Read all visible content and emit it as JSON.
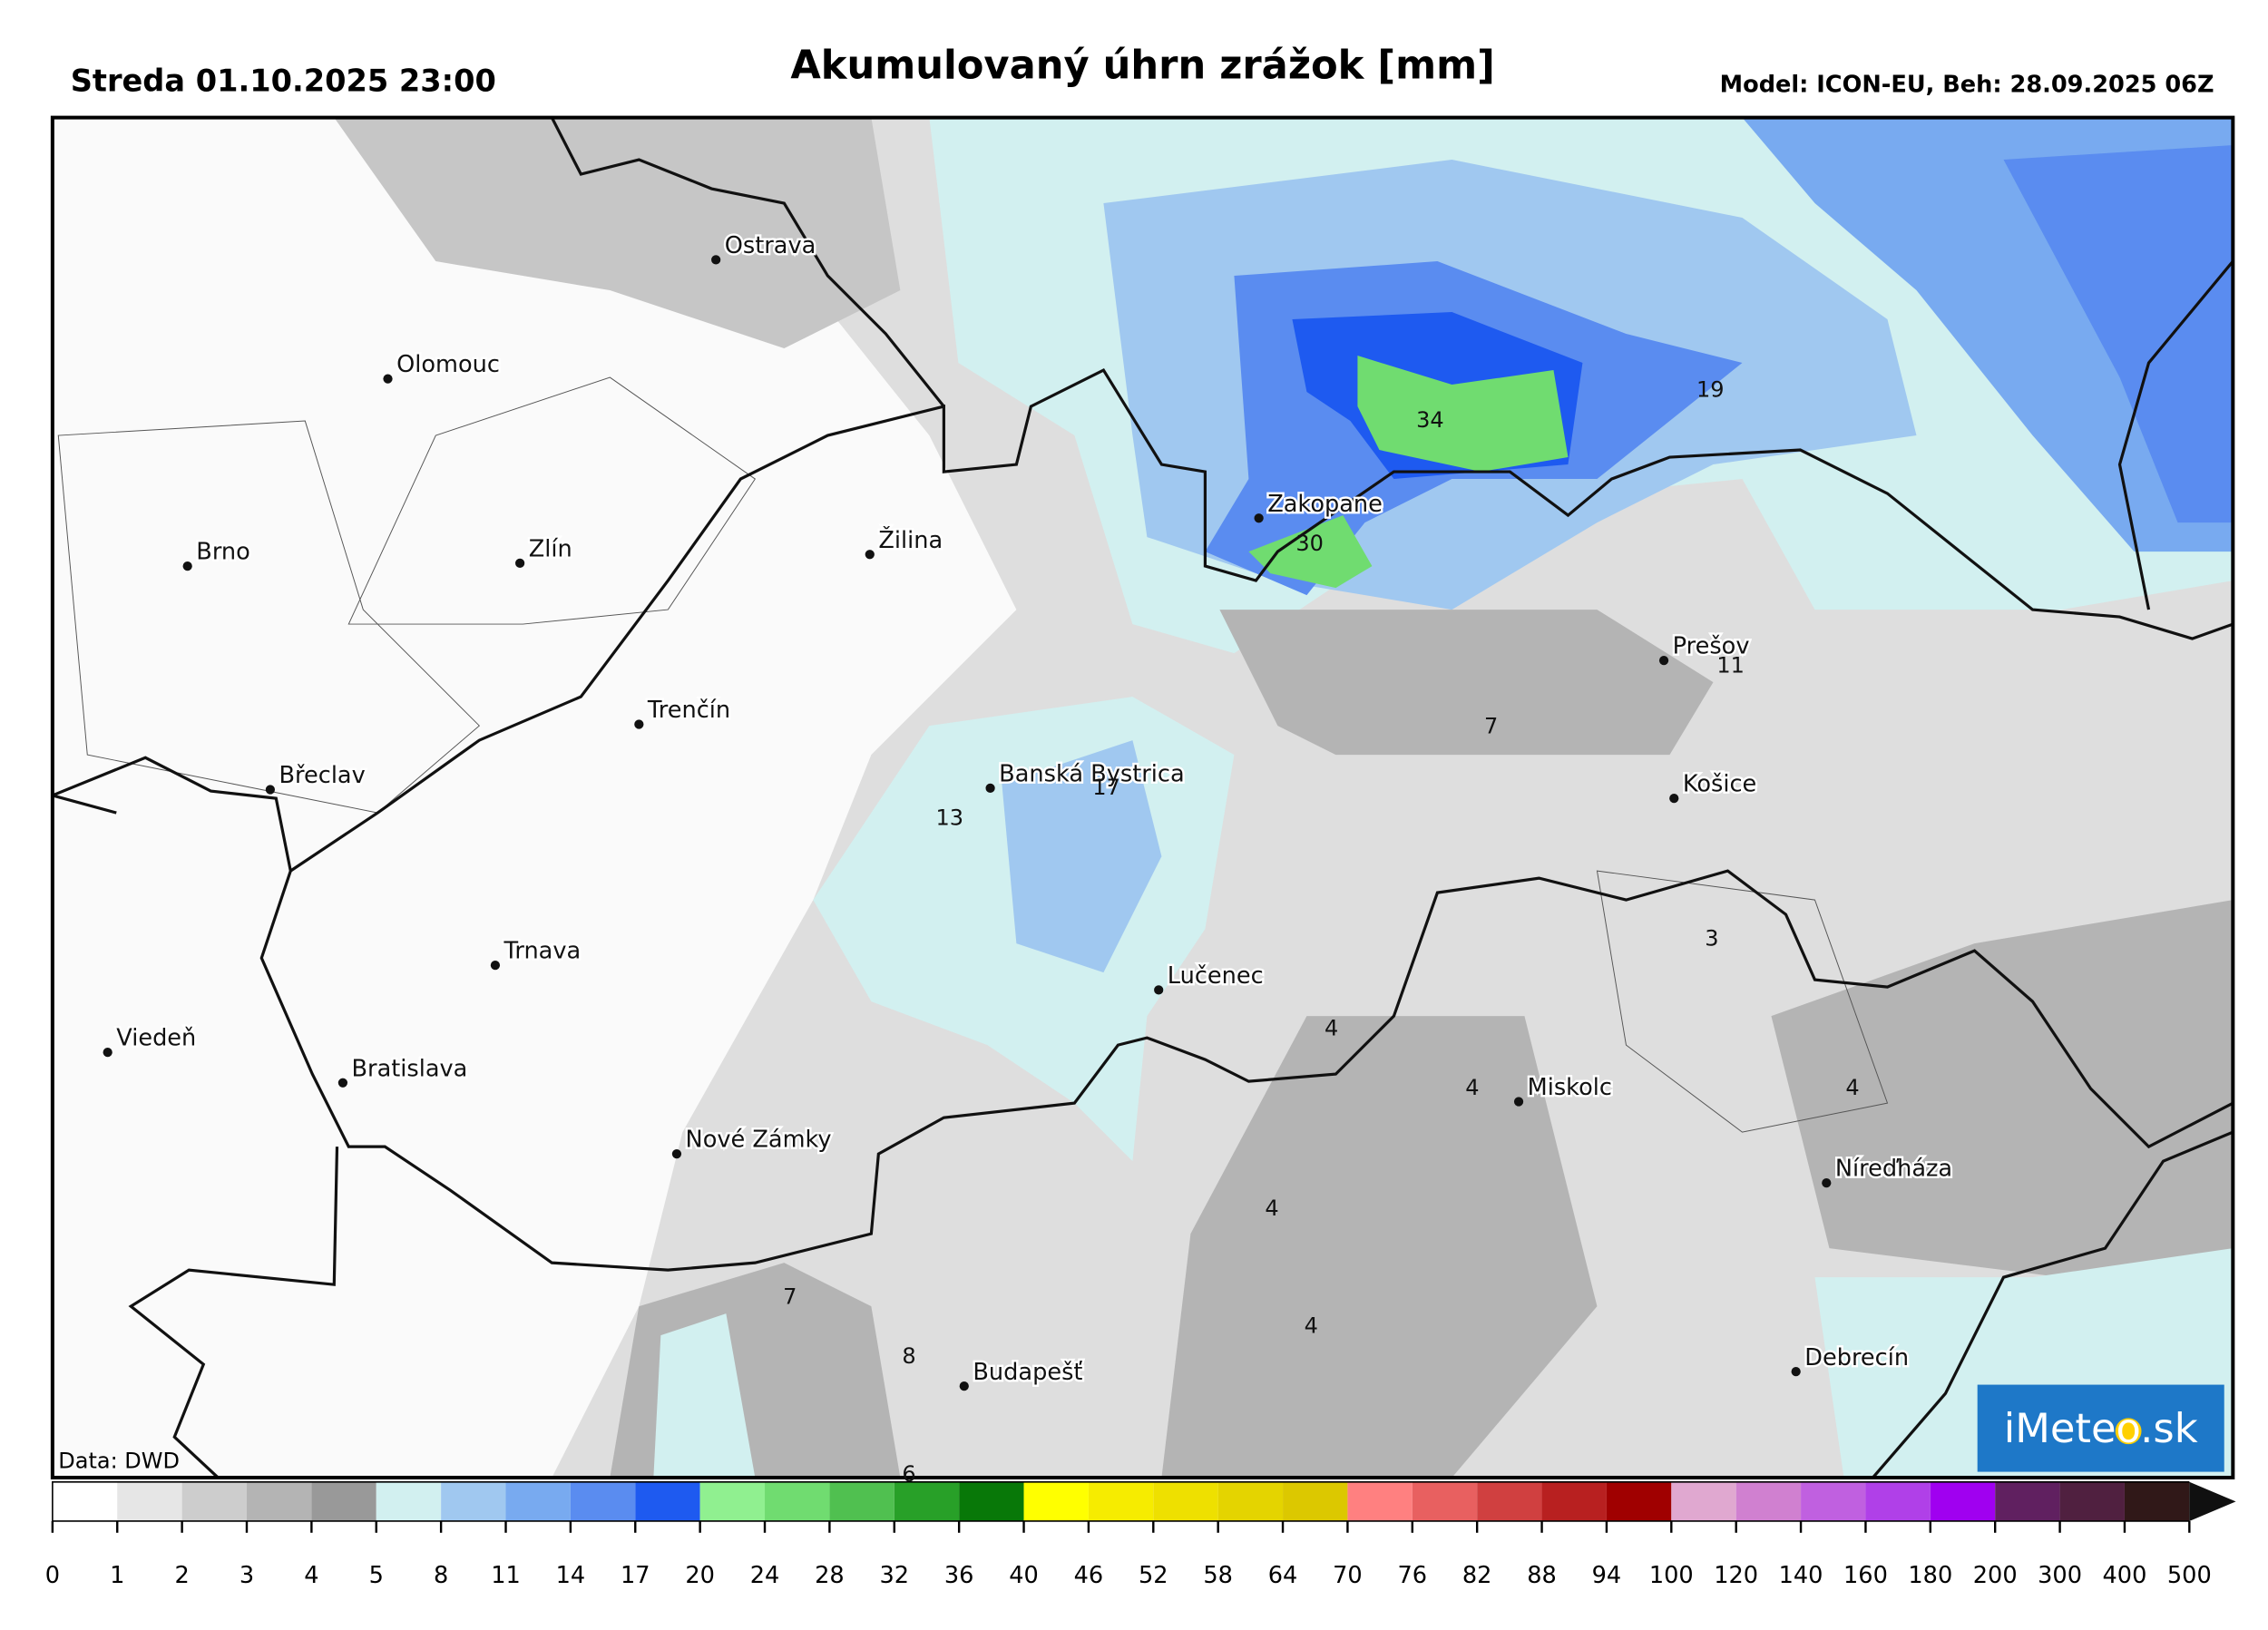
{
  "header": {
    "title": "Akumulovaný úhrn zrážok [mm]",
    "valid_time": "Streda 01.10.2025 23:00",
    "model": "Model: ICON-EU, Beh: 28.09.2025 06Z"
  },
  "map": {
    "cities": [
      "Ostrava",
      "Olomouc",
      "Brno",
      "Zlín",
      "Žilina",
      "Trenčín",
      "Břeclav",
      "Banská Bystrica",
      "Zakopane",
      "Prešov",
      "Košice",
      "Trnava",
      "Viedeň",
      "Bratislava",
      "Lučenec",
      "Miskolc",
      "Nové Zámky",
      "Níreďháza",
      "Budapešť",
      "Debrecín"
    ],
    "value_labels": [
      "34",
      "30",
      "19",
      "11",
      "7",
      "17",
      "13",
      "3",
      "4",
      "4",
      "4",
      "4",
      "4",
      "7",
      "8",
      "6"
    ],
    "source": "Data: DWD",
    "logo": "iMeteo.sk"
  },
  "colorbar": {
    "ticks": [
      "0",
      "1",
      "2",
      "3",
      "4",
      "5",
      "8",
      "11",
      "14",
      "17",
      "20",
      "24",
      "28",
      "32",
      "36",
      "40",
      "46",
      "52",
      "58",
      "64",
      "70",
      "76",
      "82",
      "88",
      "94",
      "100",
      "120",
      "140",
      "160",
      "180",
      "200",
      "300",
      "400",
      "500"
    ],
    "colors": [
      "#ffffff",
      "#e6e6e6",
      "#cdcdcd",
      "#b4b4b4",
      "#999999",
      "#d2f0f0",
      "#a0c8f0",
      "#78aaf0",
      "#5a8cf0",
      "#1e5af0",
      "#90f090",
      "#70dc70",
      "#50c050",
      "#28a028",
      "#087808",
      "#ffff00",
      "#f6ec00",
      "#eee000",
      "#e4d400",
      "#dcc800",
      "#ff8080",
      "#e86060",
      "#d04040",
      "#b82020",
      "#a00000",
      "#e0a8d0",
      "#d080d0",
      "#c060e0",
      "#b040e8",
      "#a000f0",
      "#602060",
      "#502040",
      "#301818",
      "#101010"
    ]
  }
}
